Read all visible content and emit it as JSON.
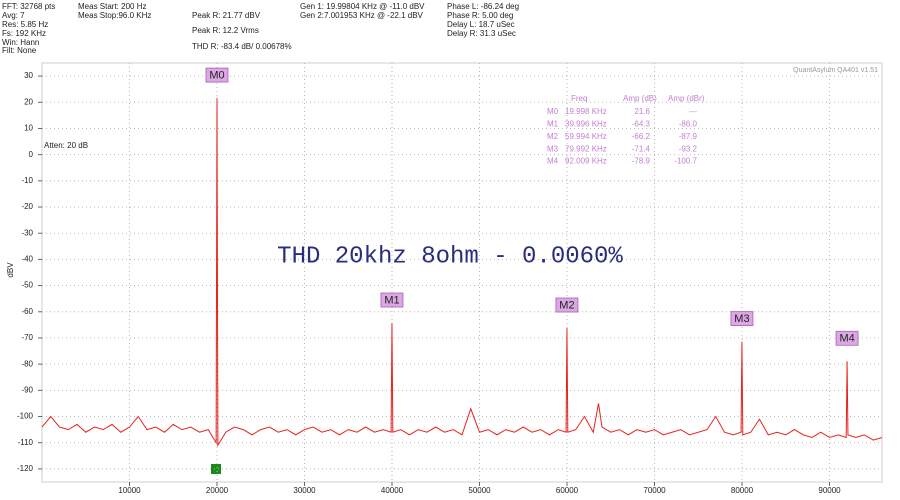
{
  "status_panel": {
    "columns": [
      [
        "FFT: 32768 pts",
        "Avg: 7",
        "Res: 5.85 Hz",
        "Fs: 192 KHz",
        "Win: Hann",
        "Filt: None"
      ],
      [
        "Meas Start: 200 Hz",
        "Meas Stop:96.0 KHz"
      ],
      [
        "Peak R: 21.77 dBV",
        "Peak R: 12.2 Vrms",
        "THD R: -83.4 dB/ 0.00678%"
      ],
      [
        "Gen 1: 19.99804 KHz @ -11.0  dBV",
        "Gen 2:7.001953 KHz @ -22.1  dBV"
      ],
      [
        "Phase L: -86.24 deg",
        "Phase R: 5.00 deg",
        "Delay L: 18.7 uSec",
        "Delay R: 31.3 uSec"
      ]
    ]
  },
  "chart_data": {
    "type": "line",
    "annotation": "THD 20khz 8ohm - 0.0060%",
    "ylabel": "dBV",
    "atten_label": "Atten: 20 dB",
    "watermark": "QuantAsylum QA401 v1.51",
    "color": "#e8231e",
    "grid": true,
    "xlim": [
      0,
      96000
    ],
    "ylim": [
      -125,
      35
    ],
    "xticks": [
      10000,
      20000,
      30000,
      40000,
      50000,
      60000,
      70000,
      80000,
      90000
    ],
    "yticks": [
      30,
      20,
      10,
      0,
      -10,
      -20,
      -30,
      -40,
      -50,
      -60,
      -70,
      -80,
      -90,
      -100,
      -110,
      -120
    ],
    "x": [
      0,
      1000,
      2000,
      3000,
      4000,
      5000,
      6000,
      7000,
      8000,
      9000,
      10000,
      11000,
      12000,
      13000,
      14000,
      15000,
      16000,
      17000,
      18000,
      19000,
      19900,
      19998,
      20100,
      21000,
      22000,
      23000,
      24000,
      25000,
      26000,
      27000,
      28000,
      29000,
      30000,
      31000,
      32000,
      33000,
      34000,
      35000,
      36000,
      37000,
      38000,
      39000,
      39896,
      39996,
      40096,
      41000,
      42000,
      43000,
      44000,
      45000,
      46000,
      47000,
      48000,
      49000,
      50000,
      51000,
      52000,
      53000,
      54000,
      55000,
      56000,
      57000,
      58000,
      59000,
      59894,
      59994,
      60094,
      61000,
      62000,
      63000,
      63600,
      64000,
      65000,
      66000,
      67000,
      68000,
      69000,
      70000,
      71000,
      72000,
      73000,
      74000,
      75000,
      76000,
      77000,
      78000,
      79000,
      79892,
      79992,
      80092,
      81000,
      82000,
      83000,
      84000,
      85000,
      86000,
      87000,
      88000,
      89000,
      90000,
      91000,
      91909,
      92009,
      92109,
      93000,
      94000,
      95000,
      96000
    ],
    "values": [
      -104,
      -100,
      -104,
      -105,
      -103,
      -106,
      -104,
      -105,
      -103,
      -106,
      -104,
      -100,
      -105,
      -104,
      -106,
      -103,
      -105,
      -104,
      -106,
      -105,
      -110,
      21.6,
      -111,
      -106,
      -104,
      -105,
      -107,
      -105,
      -104,
      -106,
      -105,
      -107,
      -105,
      -104,
      -106,
      -105,
      -107,
      -105,
      -106,
      -104,
      -106,
      -105,
      -106,
      -64.3,
      -106,
      -105,
      -107,
      -105,
      -106,
      -104,
      -106,
      -105,
      -107,
      -97,
      -106,
      -105,
      -107,
      -105,
      -106,
      -104,
      -106,
      -105,
      -107,
      -105,
      -106,
      -66.2,
      -106,
      -105,
      -100,
      -106,
      -95,
      -104,
      -106,
      -105,
      -107,
      -105,
      -106,
      -105,
      -107,
      -106,
      -105,
      -107,
      -106,
      -105,
      -100,
      -106,
      -107,
      -106,
      -71.4,
      -107,
      -106,
      -101,
      -107,
      -106,
      -107,
      -105,
      -107,
      -108,
      -106,
      -108,
      -107,
      -108,
      -78.9,
      -107,
      -108,
      -107,
      -109,
      -108
    ],
    "markers": [
      {
        "label": "M0",
        "x": 19998,
        "y": 21.6
      },
      {
        "label": "M1",
        "x": 39996,
        "y": -64.3
      },
      {
        "label": "M2",
        "x": 59994,
        "y": -66.2
      },
      {
        "label": "M3",
        "x": 79992,
        "y": -71.4
      },
      {
        "label": "M4",
        "x": 92009,
        "y": -78.9
      }
    ],
    "marker_table": {
      "header": [
        "Freq",
        "Amp (dB)",
        "Amp (dBr)"
      ],
      "rows": [
        [
          "M0",
          "19.998 KHz",
          "21.6",
          "---"
        ],
        [
          "M1",
          "39.996 KHz",
          "-64.3",
          "-86.0"
        ],
        [
          "M2",
          "59.994 KHz",
          "-66.2",
          "-87.9"
        ],
        [
          "M3",
          "79.992 KHz",
          "-71.4",
          "-93.2"
        ],
        [
          "M4",
          "92.009 KHz",
          "-78.9",
          "-100.7"
        ]
      ]
    }
  }
}
